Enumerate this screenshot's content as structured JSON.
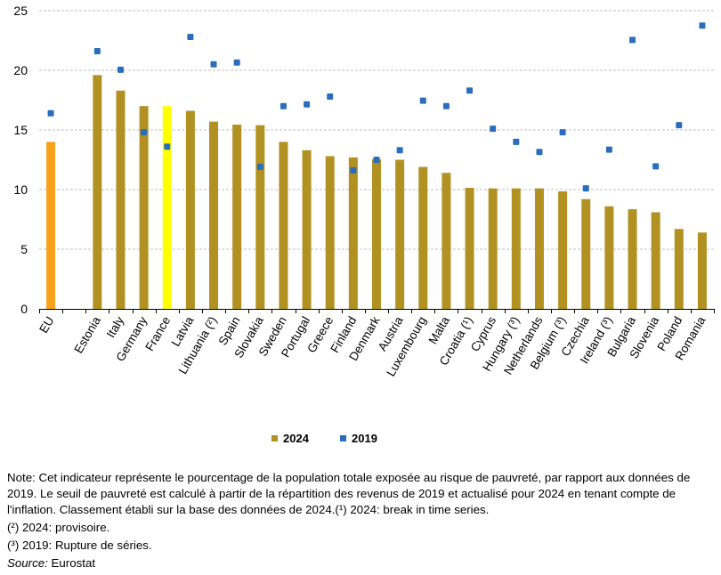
{
  "chart_data": {
    "type": "bar",
    "title": "",
    "xlabel": "",
    "ylabel": "",
    "ylim": [
      0,
      25
    ],
    "yticks": [
      0,
      5,
      10,
      15,
      20,
      25
    ],
    "grid": true,
    "legend_position": "bottom-center",
    "categories": [
      "EU",
      "",
      "Estonia",
      "Italy",
      "Germany",
      "France",
      "Latvia",
      "Lithuania (²)",
      "Spain",
      "Slovakia",
      "Sweden",
      "Portugal",
      "Greece",
      "Finland",
      "Denmark",
      "Austria",
      "Luxembourg",
      "Malta",
      "Croatia (¹)",
      "Cyprus",
      "Hungary (³)",
      "Netherlands",
      "Belgium (³)",
      "Czechia",
      "Ireland (³)",
      "Bulgaria",
      "Slovenia",
      "Poland",
      "Romania"
    ],
    "series": [
      {
        "name": "2024",
        "kind": "bar",
        "color": "#B09121",
        "values": [
          14.0,
          null,
          19.6,
          18.3,
          17.0,
          17.0,
          16.6,
          15.7,
          15.45,
          15.4,
          14.0,
          13.3,
          12.8,
          12.7,
          12.55,
          12.5,
          11.9,
          11.4,
          10.15,
          10.1,
          10.1,
          10.1,
          9.85,
          9.2,
          8.6,
          8.35,
          8.1,
          6.7,
          6.4
        ]
      },
      {
        "name": "2019",
        "kind": "scatter",
        "color": "#2A6EBB",
        "values": [
          16.4,
          null,
          21.6,
          20.05,
          14.8,
          13.6,
          22.8,
          20.5,
          20.65,
          11.9,
          17.0,
          17.15,
          17.8,
          11.6,
          12.5,
          13.3,
          17.45,
          17.0,
          18.3,
          15.1,
          14.0,
          13.15,
          14.8,
          10.1,
          13.35,
          22.55,
          11.95,
          15.4,
          23.75
        ]
      }
    ],
    "highlight_colors": {
      "EU": "#F8A21A",
      "France": "#FFFF00"
    }
  },
  "legend": {
    "items": [
      {
        "label": "2024",
        "color": "#B09121"
      },
      {
        "label": "2019",
        "color": "#2A6EBB"
      }
    ]
  },
  "notes": {
    "main": "Note: Cet indicateur représente le pourcentage de la population totale exposée au risque de pauvreté, par rapport aux données de 2019. Le seuil de pauvreté est calculé à partir de la répartition des revenus de 2019 et actualisé pour 2024 en tenant compte de l'inflation. Classement établi sur la base des données de 2024.(¹) 2024: break in time series.",
    "note2": "(²) 2024: provisoire.",
    "note3": "(³) 2019: Rupture de séries.",
    "source_label": "Source:",
    "source_value": " Eurostat"
  }
}
